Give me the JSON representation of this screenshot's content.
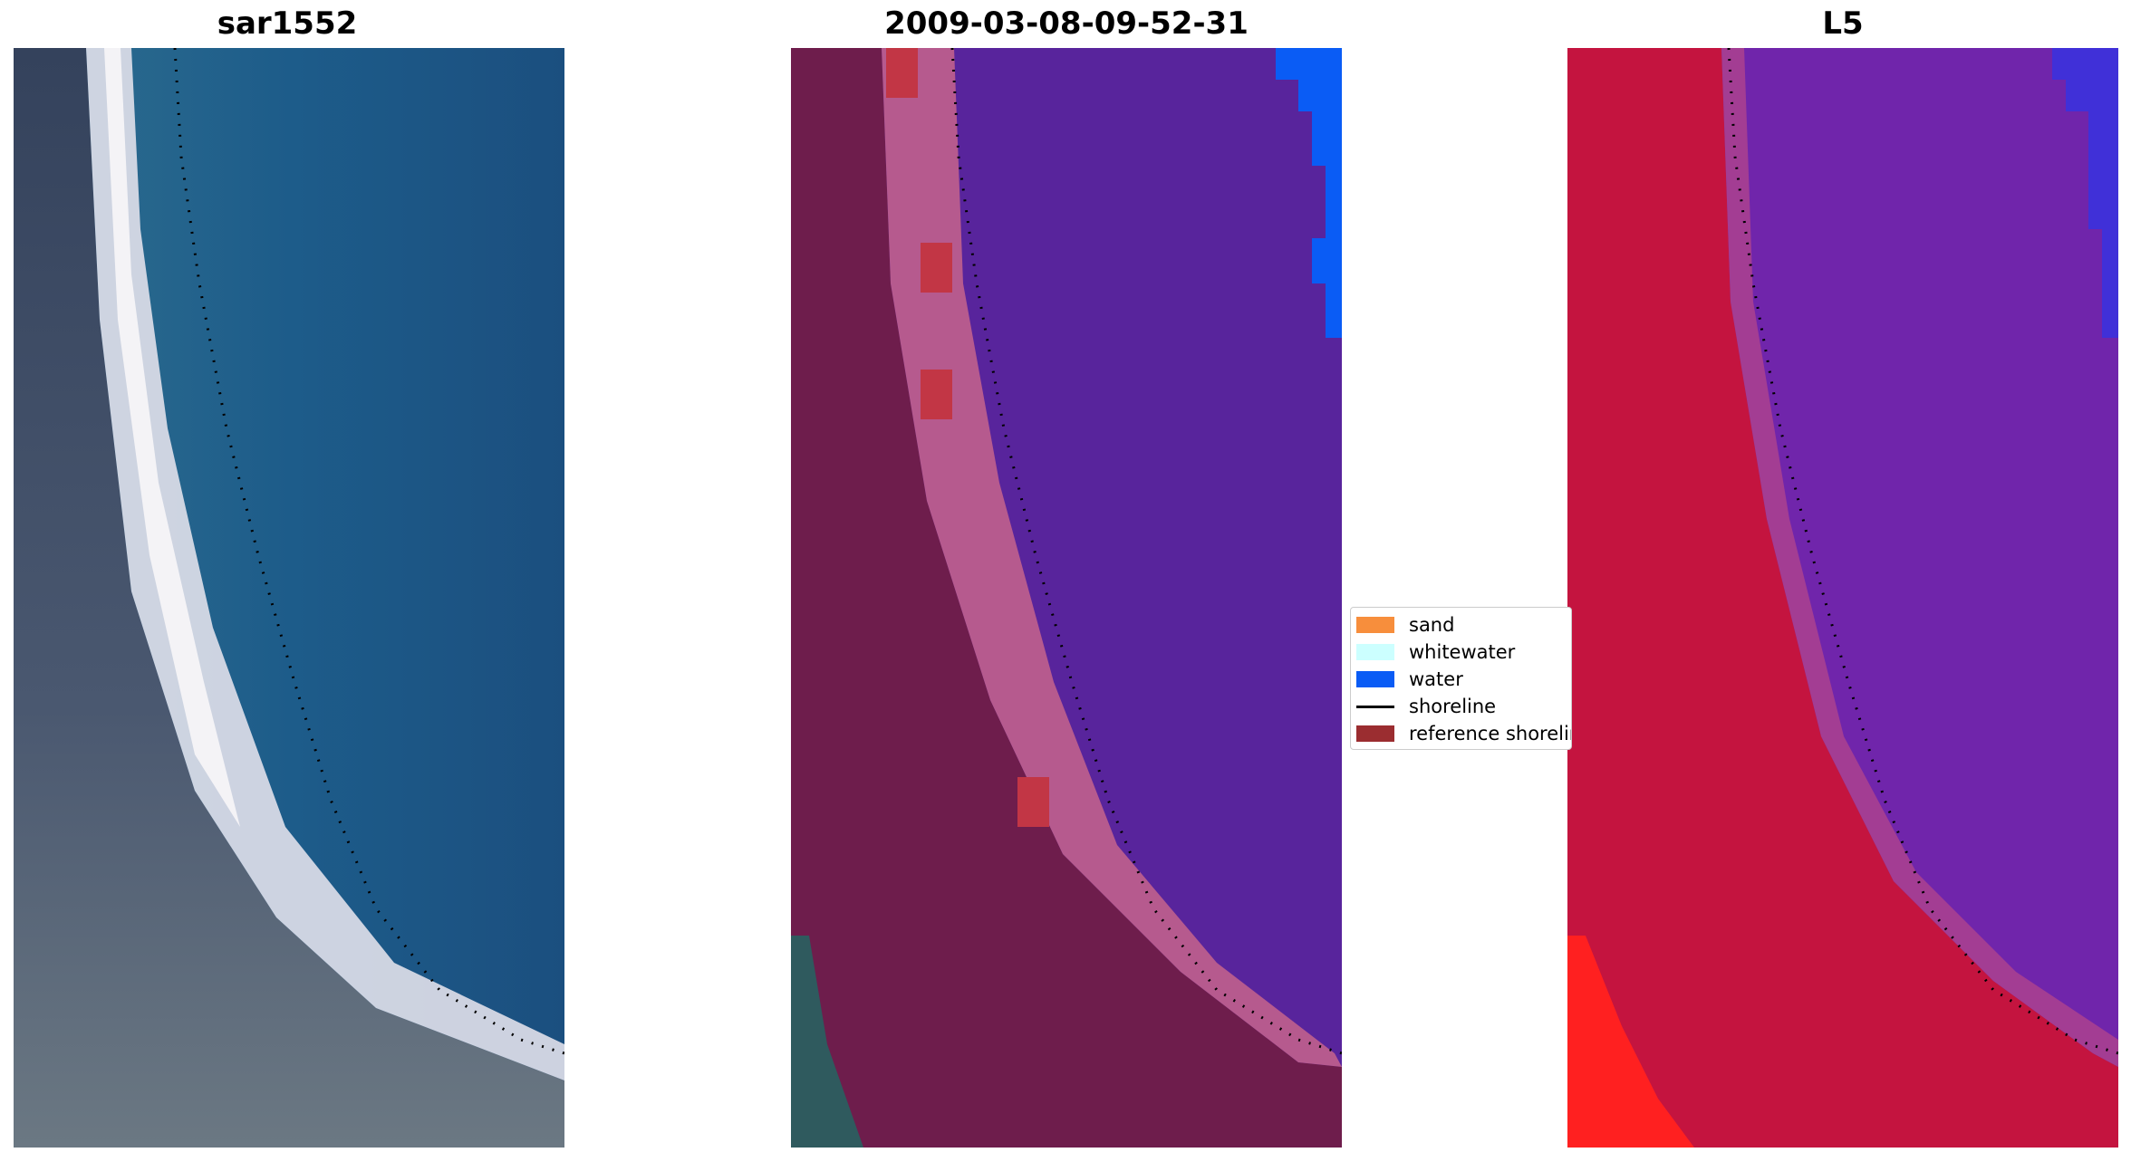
{
  "panels": [
    {
      "title": "sar1552"
    },
    {
      "title": "2009-03-08-09-52-31"
    },
    {
      "title": "L5"
    }
  ],
  "legend": {
    "items": [
      {
        "label": "sand",
        "color": "#f78e3c",
        "kind": "patch"
      },
      {
        "label": "whitewater",
        "color": "#ccffff",
        "kind": "patch"
      },
      {
        "label": "water",
        "color": "#0a5cf5",
        "kind": "patch"
      },
      {
        "label": "shoreline",
        "color": "#000000",
        "kind": "line"
      },
      {
        "label": "reference shoreline",
        "color": "#9b2d30",
        "kind": "patch"
      }
    ]
  },
  "colors": {
    "rgb_beach": "#e8e6ee",
    "rgb_sea": "#1e5a86",
    "rgb_land": "#3c4a60",
    "class_land": "#6e1d4c",
    "class_beach": "#b65a8e",
    "class_sea": "#58249c",
    "index_land": "#c4143f",
    "index_beach": "#9b3a8f",
    "index_sea": "#6a1ea8"
  }
}
